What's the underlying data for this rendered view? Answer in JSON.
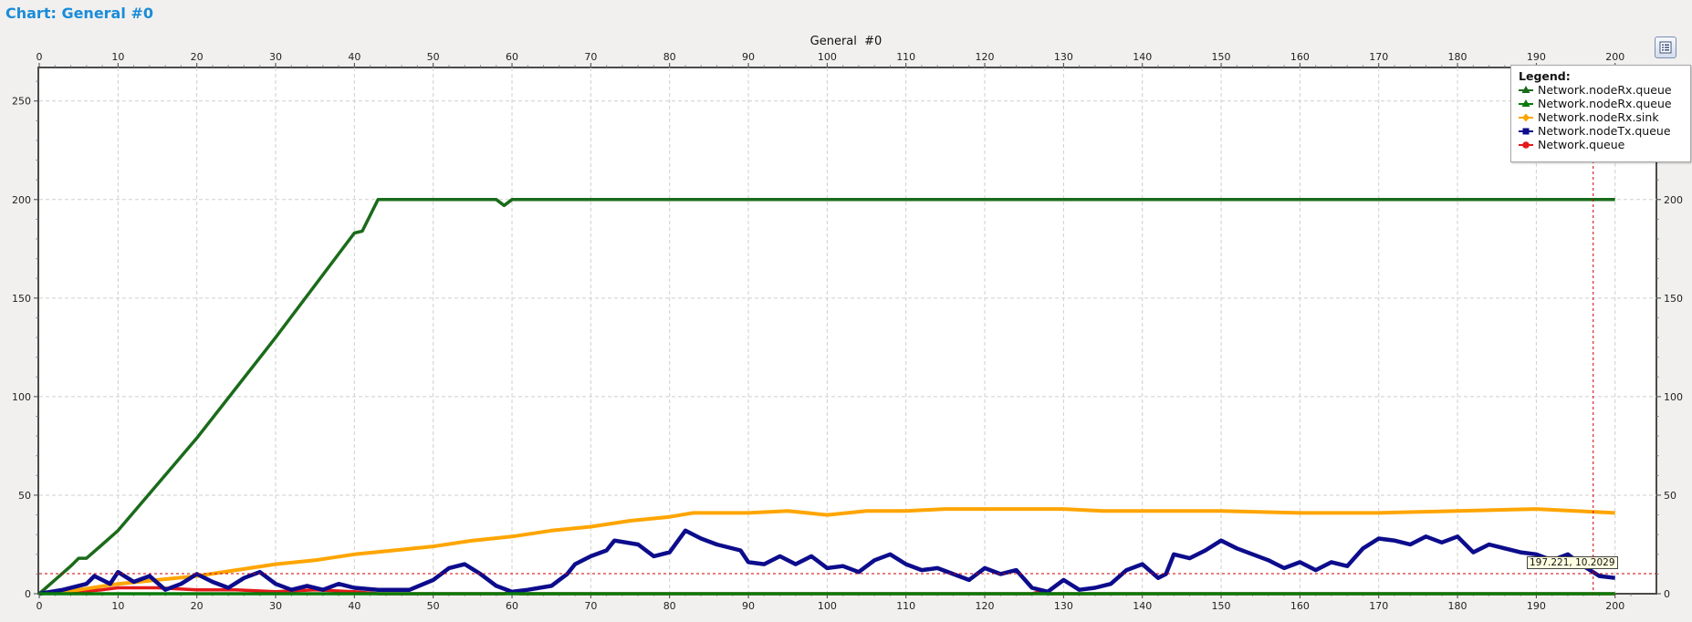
{
  "window": {
    "title": "Chart: General  #0"
  },
  "colors": {
    "background": "#f1f0ef",
    "plot_background": "#ffffff",
    "grid": "#cfcfcf",
    "title": "#1a8cd8",
    "crosshair": "#cc0000"
  },
  "icons": {
    "options": "list-icon"
  },
  "legend": {
    "title": "Legend:",
    "entries": [
      {
        "label": "Network.nodeRx.queue",
        "color": "#1a6b1a",
        "marker": "triangle"
      },
      {
        "label": "Network.nodeRx.queue",
        "color": "#0b7a0b",
        "marker": "triangle"
      },
      {
        "label": "Network.nodeRx.sink",
        "color": "#ffa500",
        "marker": "diamond"
      },
      {
        "label": "Network.nodeTx.queue",
        "color": "#0c0c8c",
        "marker": "square"
      },
      {
        "label": "Network.queue",
        "color": "#e31a1a",
        "marker": "circle"
      }
    ]
  },
  "crosshair": {
    "x": 197.221,
    "y": 10.2029,
    "label": "197.221, 10.2029"
  },
  "chart_data": {
    "type": "line",
    "title": "General  #0",
    "xlabel": "",
    "ylabel": "",
    "xlim": [
      0,
      202
    ],
    "ylim": [
      0,
      267
    ],
    "x_ticks": [
      0,
      10,
      20,
      30,
      40,
      50,
      60,
      70,
      80,
      90,
      100,
      110,
      120,
      130,
      140,
      150,
      160,
      170,
      180,
      190,
      200
    ],
    "y_ticks": [
      0,
      50,
      100,
      150,
      200,
      250
    ],
    "x_axis_position": "top and bottom",
    "y_axis_position": "left and right",
    "grid": true,
    "legend_position": "top-right",
    "series": [
      {
        "name": "Network.nodeRx.queue",
        "color": "#1a6b1a",
        "points": [
          [
            0,
            0
          ],
          [
            4,
            14
          ],
          [
            5,
            18
          ],
          [
            6,
            18
          ],
          [
            8,
            25
          ],
          [
            10,
            32
          ],
          [
            20,
            79
          ],
          [
            30,
            130
          ],
          [
            40,
            183
          ],
          [
            41,
            184
          ],
          [
            43,
            200
          ],
          [
            58,
            200
          ],
          [
            59,
            197
          ],
          [
            60,
            200
          ],
          [
            200,
            200
          ]
        ]
      },
      {
        "name": "Network.nodeRx.queue",
        "color": "#0b7a0b",
        "points": [
          [
            0,
            0
          ],
          [
            200,
            0
          ]
        ]
      },
      {
        "name": "Network.nodeRx.sink",
        "color": "#ffa500",
        "points": [
          [
            0,
            0
          ],
          [
            5,
            2
          ],
          [
            10,
            5
          ],
          [
            15,
            7
          ],
          [
            20,
            9
          ],
          [
            25,
            12
          ],
          [
            30,
            15
          ],
          [
            35,
            17
          ],
          [
            40,
            20
          ],
          [
            45,
            22
          ],
          [
            50,
            24
          ],
          [
            55,
            27
          ],
          [
            60,
            29
          ],
          [
            65,
            32
          ],
          [
            70,
            34
          ],
          [
            75,
            37
          ],
          [
            80,
            39
          ],
          [
            83,
            41
          ],
          [
            90,
            41
          ],
          [
            95,
            42
          ],
          [
            100,
            40
          ],
          [
            105,
            42
          ],
          [
            110,
            42
          ],
          [
            115,
            43
          ],
          [
            120,
            43
          ],
          [
            125,
            43
          ],
          [
            130,
            43
          ],
          [
            135,
            42
          ],
          [
            140,
            42
          ],
          [
            150,
            42
          ],
          [
            160,
            41
          ],
          [
            170,
            41
          ],
          [
            180,
            42
          ],
          [
            190,
            43
          ],
          [
            195,
            42
          ],
          [
            200,
            41
          ]
        ]
      },
      {
        "name": "Network.nodeTx.queue",
        "color": "#0c0c8c",
        "points": [
          [
            0,
            0
          ],
          [
            3,
            2
          ],
          [
            6,
            5
          ],
          [
            7,
            9
          ],
          [
            9,
            5
          ],
          [
            10,
            11
          ],
          [
            12,
            6
          ],
          [
            14,
            9
          ],
          [
            16,
            2
          ],
          [
            18,
            5
          ],
          [
            20,
            10
          ],
          [
            22,
            6
          ],
          [
            24,
            3
          ],
          [
            26,
            8
          ],
          [
            28,
            11
          ],
          [
            30,
            5
          ],
          [
            32,
            2
          ],
          [
            34,
            4
          ],
          [
            36,
            2
          ],
          [
            38,
            5
          ],
          [
            40,
            3
          ],
          [
            43,
            2
          ],
          [
            47,
            2
          ],
          [
            50,
            7
          ],
          [
            52,
            13
          ],
          [
            54,
            15
          ],
          [
            56,
            10
          ],
          [
            58,
            4
          ],
          [
            60,
            1
          ],
          [
            62,
            2
          ],
          [
            65,
            4
          ],
          [
            67,
            10
          ],
          [
            68,
            15
          ],
          [
            70,
            19
          ],
          [
            72,
            22
          ],
          [
            73,
            27
          ],
          [
            76,
            25
          ],
          [
            78,
            19
          ],
          [
            80,
            21
          ],
          [
            82,
            32
          ],
          [
            84,
            28
          ],
          [
            86,
            25
          ],
          [
            89,
            22
          ],
          [
            90,
            16
          ],
          [
            92,
            15
          ],
          [
            94,
            19
          ],
          [
            96,
            15
          ],
          [
            98,
            19
          ],
          [
            100,
            13
          ],
          [
            102,
            14
          ],
          [
            104,
            11
          ],
          [
            106,
            17
          ],
          [
            108,
            20
          ],
          [
            110,
            15
          ],
          [
            112,
            12
          ],
          [
            114,
            13
          ],
          [
            116,
            10
          ],
          [
            118,
            7
          ],
          [
            120,
            13
          ],
          [
            122,
            10
          ],
          [
            124,
            12
          ],
          [
            126,
            3
          ],
          [
            128,
            1
          ],
          [
            130,
            7
          ],
          [
            132,
            2
          ],
          [
            134,
            3
          ],
          [
            136,
            5
          ],
          [
            138,
            12
          ],
          [
            140,
            15
          ],
          [
            142,
            8
          ],
          [
            143,
            10
          ],
          [
            144,
            20
          ],
          [
            146,
            18
          ],
          [
            148,
            22
          ],
          [
            150,
            27
          ],
          [
            152,
            23
          ],
          [
            154,
            20
          ],
          [
            156,
            17
          ],
          [
            158,
            13
          ],
          [
            160,
            16
          ],
          [
            162,
            12
          ],
          [
            164,
            16
          ],
          [
            166,
            14
          ],
          [
            168,
            23
          ],
          [
            170,
            28
          ],
          [
            172,
            27
          ],
          [
            174,
            25
          ],
          [
            176,
            29
          ],
          [
            178,
            26
          ],
          [
            180,
            29
          ],
          [
            182,
            21
          ],
          [
            184,
            25
          ],
          [
            186,
            23
          ],
          [
            188,
            21
          ],
          [
            190,
            20
          ],
          [
            192,
            17
          ],
          [
            194,
            20
          ],
          [
            196,
            14
          ],
          [
            198,
            9
          ],
          [
            200,
            8
          ]
        ]
      },
      {
        "name": "Network.queue",
        "color": "#e31a1a",
        "points": [
          [
            0,
            0
          ],
          [
            5,
            1
          ],
          [
            8,
            2
          ],
          [
            10,
            3
          ],
          [
            15,
            3
          ],
          [
            20,
            2
          ],
          [
            25,
            2
          ],
          [
            30,
            1
          ],
          [
            35,
            2
          ],
          [
            40,
            1
          ],
          [
            43,
            0
          ],
          [
            59,
            0
          ],
          [
            60,
            1
          ],
          [
            61,
            0
          ],
          [
            126,
            0
          ],
          [
            127,
            1
          ],
          [
            128,
            0
          ],
          [
            200,
            0
          ]
        ]
      }
    ]
  }
}
